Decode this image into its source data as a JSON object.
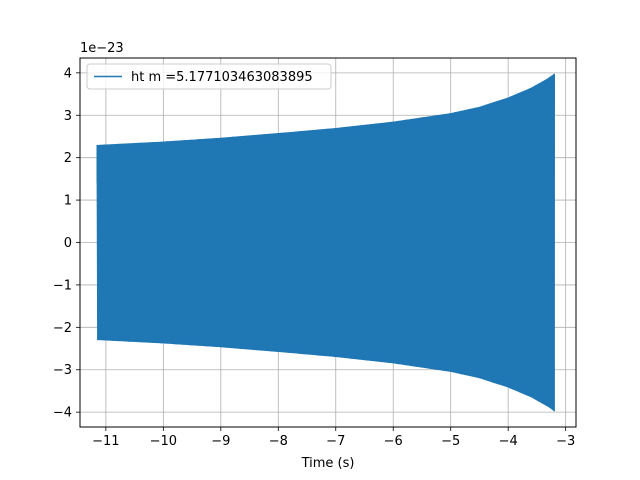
{
  "chart_data": {
    "type": "line",
    "xlabel": "Time (s)",
    "ylabel": "",
    "y_offset_label": "1e−23",
    "xlim": [
      -11.45,
      -2.82
    ],
    "ylim": [
      -4.35,
      4.35
    ],
    "x_ticks": [
      -11,
      -10,
      -9,
      -8,
      -7,
      -6,
      -5,
      -4,
      -3
    ],
    "x_tick_labels": [
      "−11",
      "−10",
      "−9",
      "−8",
      "−7",
      "−6",
      "−5",
      "−4",
      "−3"
    ],
    "y_ticks": [
      -4,
      -3,
      -2,
      -1,
      0,
      1,
      2,
      3,
      4
    ],
    "y_tick_labels": [
      "−4",
      "−3",
      "−2",
      "−1",
      "0",
      "1",
      "2",
      "3",
      "4"
    ],
    "grid": true,
    "legend_position": "top-left",
    "series": [
      {
        "name": "ht m =5.177103463083895",
        "color": "#1f77b4",
        "style": "oscillating signal with growing amplitude envelope (chirp)",
        "envelope": {
          "x": [
            -11.15,
            -10,
            -9,
            -8,
            -7,
            -6,
            -5,
            -4.5,
            -4,
            -3.6,
            -3.3,
            -3.2
          ],
          "upper": [
            2.3,
            2.38,
            2.47,
            2.58,
            2.7,
            2.85,
            3.05,
            3.2,
            3.42,
            3.65,
            3.88,
            3.98
          ],
          "lower": [
            -2.3,
            -2.38,
            -2.47,
            -2.58,
            -2.7,
            -2.85,
            -3.05,
            -3.2,
            -3.42,
            -3.65,
            -3.88,
            -3.98
          ]
        }
      }
    ]
  }
}
